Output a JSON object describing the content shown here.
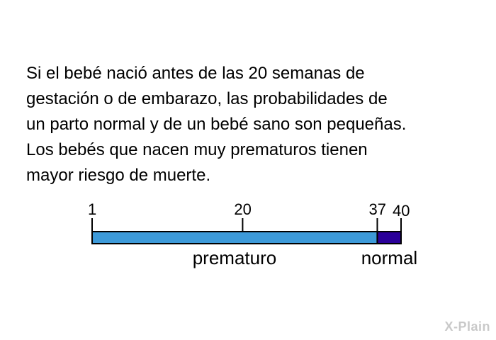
{
  "paragraph": {
    "lines": [
      "Si el bebé nació antes de las 20 semanas de",
      "gestación o de embarazo, las probabilidades de",
      "un parto normal y de un bebé sano son pequeñas.",
      "Los bebés que nacen muy prematuros tienen",
      "mayor riesgo de muerte."
    ]
  },
  "timeline": {
    "ticks": [
      "1",
      "20",
      "37",
      "40"
    ],
    "tick_weeks": [
      1,
      20,
      37,
      40
    ],
    "segments": [
      {
        "label": "prematuro",
        "from_week": 1,
        "to_week": 37,
        "color": "#3d9ad9"
      },
      {
        "label": "normal",
        "from_week": 37,
        "to_week": 40,
        "color": "#2a0099"
      }
    ]
  },
  "watermark": "X-Plain"
}
